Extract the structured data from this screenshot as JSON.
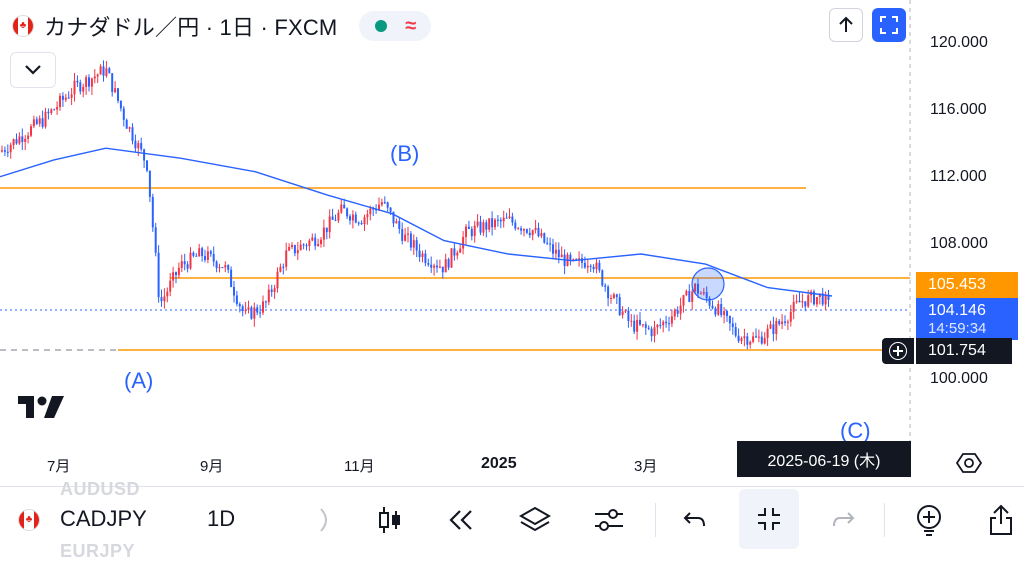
{
  "header": {
    "title": "カナダドル／円 · 1日 · FXCM",
    "flag_icon": "canada-flag-icon",
    "status": [
      "market-open-dot-icon",
      "replay-wave-icon"
    ]
  },
  "top_right": [
    "arrow-up-icon",
    "fullscreen-icon"
  ],
  "wave_labels": {
    "a": "(A)",
    "b": "(B)",
    "c": "(C)"
  },
  "price_axis": {
    "ticks": [
      "120.000",
      "116.000",
      "112.000",
      "108.000",
      "100.000"
    ],
    "badges": {
      "orange": "105.453",
      "blue_price": "104.146",
      "blue_countdown": "14:59:34",
      "crosshair": "101.754"
    }
  },
  "time_axis": {
    "ticks": [
      "7月",
      "9月",
      "11月",
      "2025",
      "3月"
    ],
    "crosshair_date": "2025-06-19 (木)"
  },
  "toolbar": {
    "ghost_above": "AUDUSD",
    "ghost_below": "EURJPY",
    "symbol": "CADJPY",
    "interval": "1D"
  },
  "chart_data": {
    "type": "candlestick",
    "symbol": "CADJPY",
    "timeframe": "1D",
    "y_range": [
      96.5,
      121.0
    ],
    "last_price": 104.146,
    "highlighted_levels": [
      111.3,
      105.453,
      101.754
    ],
    "moving_average": {
      "color": "#2962ff",
      "points": [
        [
          "2024-05-20",
          112.1
        ],
        [
          "2024-06-15",
          113.1
        ],
        [
          "2024-07-10",
          113.8
        ],
        [
          "2024-08-15",
          113.2
        ],
        [
          "2024-09-20",
          112.4
        ],
        [
          "2024-10-25",
          111.0
        ],
        [
          "2024-11-25",
          109.9
        ],
        [
          "2024-12-20",
          108.3
        ],
        [
          "2025-01-20",
          107.5
        ],
        [
          "2025-02-20",
          107.1
        ],
        [
          "2025-03-25",
          107.5
        ],
        [
          "2025-04-25",
          106.9
        ],
        [
          "2025-05-25",
          105.5
        ],
        [
          "2025-06-25",
          105.0
        ]
      ]
    },
    "price_path": [
      [
        "2024-05-20",
        113.6
      ],
      [
        "2024-06-10",
        115.5
      ],
      [
        "2024-06-25",
        117.4
      ],
      [
        "2024-07-10",
        118.5
      ],
      [
        "2024-07-20",
        115.3
      ],
      [
        "2024-07-30",
        112.8
      ],
      [
        "2024-08-05",
        104.5
      ],
      [
        "2024-08-15",
        106.8
      ],
      [
        "2024-08-25",
        107.5
      ],
      [
        "2024-09-05",
        106.8
      ],
      [
        "2024-09-15",
        103.8
      ],
      [
        "2024-09-25",
        104.5
      ],
      [
        "2024-10-05",
        107.5
      ],
      [
        "2024-10-20",
        108.5
      ],
      [
        "2024-11-01",
        110.1
      ],
      [
        "2024-11-10",
        109.6
      ],
      [
        "2024-11-20",
        110.6
      ],
      [
        "2024-12-01",
        108.5
      ],
      [
        "2024-12-10",
        107.4
      ],
      [
        "2024-12-20",
        106.7
      ],
      [
        "2024-12-31",
        108.8
      ],
      [
        "2025-01-10",
        109.2
      ],
      [
        "2025-01-20",
        109.5
      ],
      [
        "2025-02-01",
        108.9
      ],
      [
        "2025-02-10",
        107.7
      ],
      [
        "2025-02-20",
        106.8
      ],
      [
        "2025-03-01",
        107.2
      ],
      [
        "2025-03-10",
        105.1
      ],
      [
        "2025-03-20",
        103.3
      ],
      [
        "2025-03-31",
        102.9
      ],
      [
        "2025-04-10",
        104.0
      ],
      [
        "2025-04-20",
        105.5
      ],
      [
        "2025-04-30",
        104.3
      ],
      [
        "2025-05-10",
        102.7
      ],
      [
        "2025-05-20",
        102.4
      ],
      [
        "2025-05-30",
        103.3
      ],
      [
        "2025-06-10",
        104.7
      ],
      [
        "2025-06-20",
        105.0
      ],
      [
        "2025-06-25",
        104.1
      ]
    ]
  }
}
